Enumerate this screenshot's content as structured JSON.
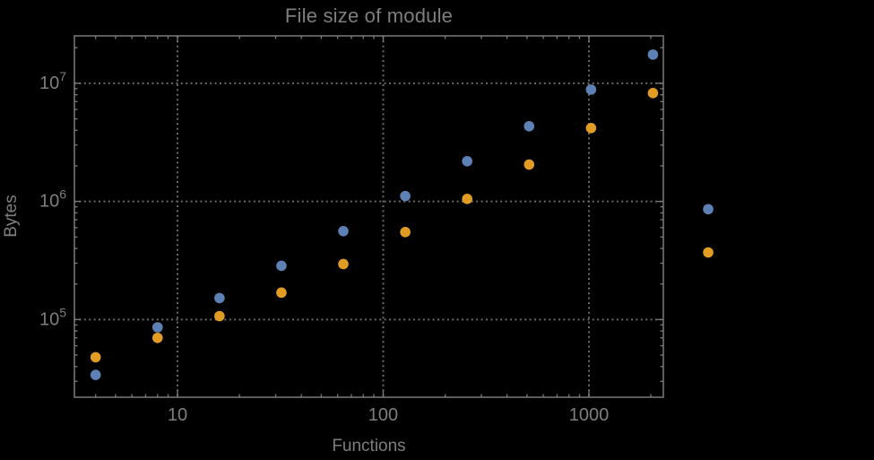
{
  "window": {
    "background": "#000000"
  },
  "chart_data": {
    "type": "scatter",
    "title": "File size of module",
    "xlabel": "Functions",
    "ylabel": "Bytes",
    "x_scale": "log",
    "y_scale": "log",
    "xlim": [
      3.154,
      2300
    ],
    "ylim": [
      22000,
      25200000
    ],
    "grid": "dotted lines at labeled major ticks only",
    "legend_position": "none",
    "frame": true,
    "x_ticks": [
      {
        "value": 10,
        "label": "10"
      },
      {
        "value": 100,
        "label": "100"
      },
      {
        "value": 1000,
        "label": "1000"
      }
    ],
    "y_ticks": [
      {
        "value": 100000,
        "base": "10",
        "exponent": "5"
      },
      {
        "value": 1000000,
        "base": "10",
        "exponent": "6"
      },
      {
        "value": 10000000,
        "base": "10",
        "exponent": "7"
      }
    ],
    "series": [
      {
        "name": "series-1-blue",
        "color": "#5E81B5",
        "x": [
          4,
          8,
          16,
          32,
          64,
          128,
          256,
          512,
          1024,
          2048,
          3800
        ],
        "y": [
          34000,
          86000,
          152000,
          285000,
          560000,
          1110000,
          2190000,
          4330000,
          8850000,
          17500000,
          860000
        ]
      },
      {
        "name": "series-2-orange",
        "color": "#E19C24",
        "x": [
          4,
          8,
          16,
          32,
          64,
          128,
          256,
          512,
          1024,
          2048,
          3800
        ],
        "y": [
          48000,
          70000,
          107000,
          169000,
          295000,
          550000,
          1050000,
          2050000,
          4180000,
          8260000,
          370000
        ]
      }
    ],
    "note": "last pair of points (x≈3800) is rendered outside the right edge of the plot frame",
    "colors": {
      "background": "#000000",
      "frame": "#7b7b7b",
      "text": "#7e7e7e",
      "grid": "#6a6a6a"
    }
  }
}
